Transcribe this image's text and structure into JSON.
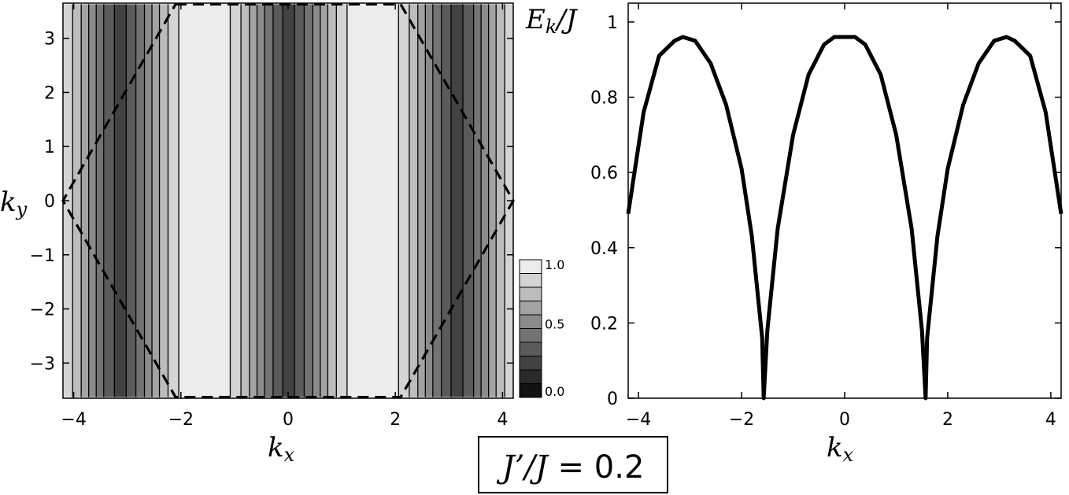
{
  "chart_data": [
    {
      "type": "heatmap",
      "xlabel": "k",
      "xlabel_sub": "x",
      "ylabel": "k",
      "ylabel_sub": "y",
      "xlim": [
        -4.2,
        4.2
      ],
      "ylim": [
        -3.65,
        3.65
      ],
      "xticks": [
        -4,
        -2,
        0,
        2,
        4
      ],
      "xtick_labels": [
        "−4",
        "−2",
        "0",
        "2",
        "4"
      ],
      "yticks": [
        3,
        2,
        1,
        0,
        -1,
        -2,
        -3
      ],
      "ytick_labels": [
        "3",
        "2",
        "1",
        "0",
        "−1",
        "−2",
        "−3"
      ],
      "value_function": "sqrt(1 - 0.92*cos(kx)^2)",
      "colorbar": {
        "range": [
          0,
          1
        ],
        "levels": 10,
        "tick_values": [
          1.0,
          0.5,
          0.0
        ],
        "tick_labels": [
          "1.0",
          "0.5",
          "0.0"
        ]
      },
      "brillouin_zone": {
        "style": "dashed",
        "vertices": [
          [
            -2.1,
            3.63
          ],
          [
            2.1,
            3.63
          ],
          [
            4.2,
            0
          ],
          [
            2.1,
            -3.63
          ],
          [
            -2.1,
            -3.63
          ],
          [
            -4.2,
            0
          ]
        ]
      }
    },
    {
      "type": "line",
      "xlabel": "k",
      "xlabel_sub": "x",
      "ylabel": "E",
      "ylabel_sub": "k",
      "ylabel_suffix": "/J",
      "xlim": [
        -4.2,
        4.2
      ],
      "ylim": [
        0,
        1.05
      ],
      "xticks": [
        -4,
        -2,
        0,
        2,
        4
      ],
      "xtick_labels": [
        "−4",
        "−2",
        "0",
        "2",
        "4"
      ],
      "yticks": [
        1,
        0.8,
        0.6,
        0.4,
        0.2,
        0
      ],
      "ytick_labels": [
        "1",
        "0.8",
        "0.6",
        "0.4",
        "0.2",
        "0"
      ],
      "series": [
        {
          "x": [
            -4.2,
            -3.9,
            -3.6,
            -3.3,
            -3.14,
            -2.9,
            -2.6,
            -2.3,
            -2.0,
            -1.8,
            -1.6,
            -1.571,
            -1.5,
            -1.3,
            -1.0,
            -0.7,
            -0.4,
            -0.2,
            0,
            0.2,
            0.4,
            0.7,
            1.0,
            1.3,
            1.5,
            1.571,
            1.6,
            1.8,
            2.0,
            2.3,
            2.6,
            2.9,
            3.14,
            3.3,
            3.6,
            3.9,
            4.2
          ],
          "y": [
            0.49,
            0.76,
            0.91,
            0.95,
            0.96,
            0.95,
            0.89,
            0.78,
            0.61,
            0.43,
            0.16,
            0.0,
            0.18,
            0.45,
            0.7,
            0.86,
            0.94,
            0.96,
            0.96,
            0.96,
            0.94,
            0.86,
            0.7,
            0.45,
            0.18,
            0.0,
            0.16,
            0.43,
            0.61,
            0.78,
            0.89,
            0.95,
            0.96,
            0.95,
            0.91,
            0.76,
            0.49
          ]
        }
      ]
    }
  ],
  "parameter_box": {
    "lhs": "J’/J",
    "rhs": "0.2"
  }
}
